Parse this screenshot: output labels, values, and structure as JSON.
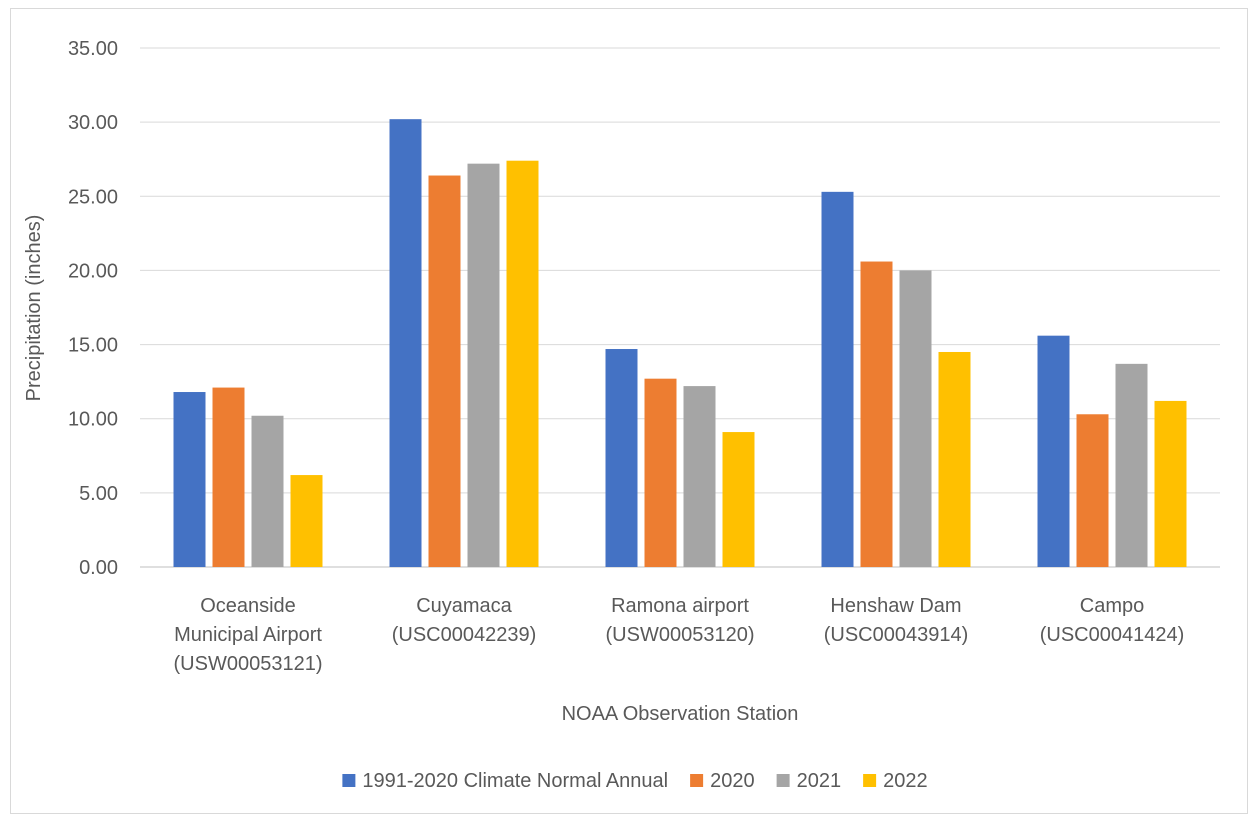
{
  "chart_data": {
    "type": "bar",
    "title": "",
    "xlabel": "NOAA Observation Station",
    "ylabel": "Precipitation (inches)",
    "ylim": [
      0,
      35
    ],
    "yticks": [
      "0.00",
      "5.00",
      "10.00",
      "15.00",
      "20.00",
      "25.00",
      "30.00",
      "35.00"
    ],
    "grid": true,
    "legend": "bottom",
    "categories": [
      [
        "Oceanside",
        "Municipal Airport",
        "(USW00053121)"
      ],
      [
        "Cuyamaca",
        "(USC00042239)"
      ],
      [
        "Ramona airport",
        "(USW00053120)"
      ],
      [
        "Henshaw Dam",
        "(USC00043914)"
      ],
      [
        "Campo",
        "(USC00041424)"
      ]
    ],
    "series": [
      {
        "name": "1991-2020 Climate Normal Annual",
        "color": "#4472c4",
        "values": [
          11.8,
          30.2,
          14.7,
          25.3,
          15.6
        ]
      },
      {
        "name": "2020",
        "color": "#ed7d31",
        "values": [
          12.1,
          26.4,
          12.7,
          20.6,
          10.3
        ]
      },
      {
        "name": "2021",
        "color": "#a5a5a5",
        "values": [
          10.2,
          27.2,
          12.2,
          20.0,
          13.7
        ]
      },
      {
        "name": "2022",
        "color": "#ffc000",
        "values": [
          6.2,
          27.4,
          9.1,
          14.5,
          11.2
        ]
      }
    ]
  }
}
